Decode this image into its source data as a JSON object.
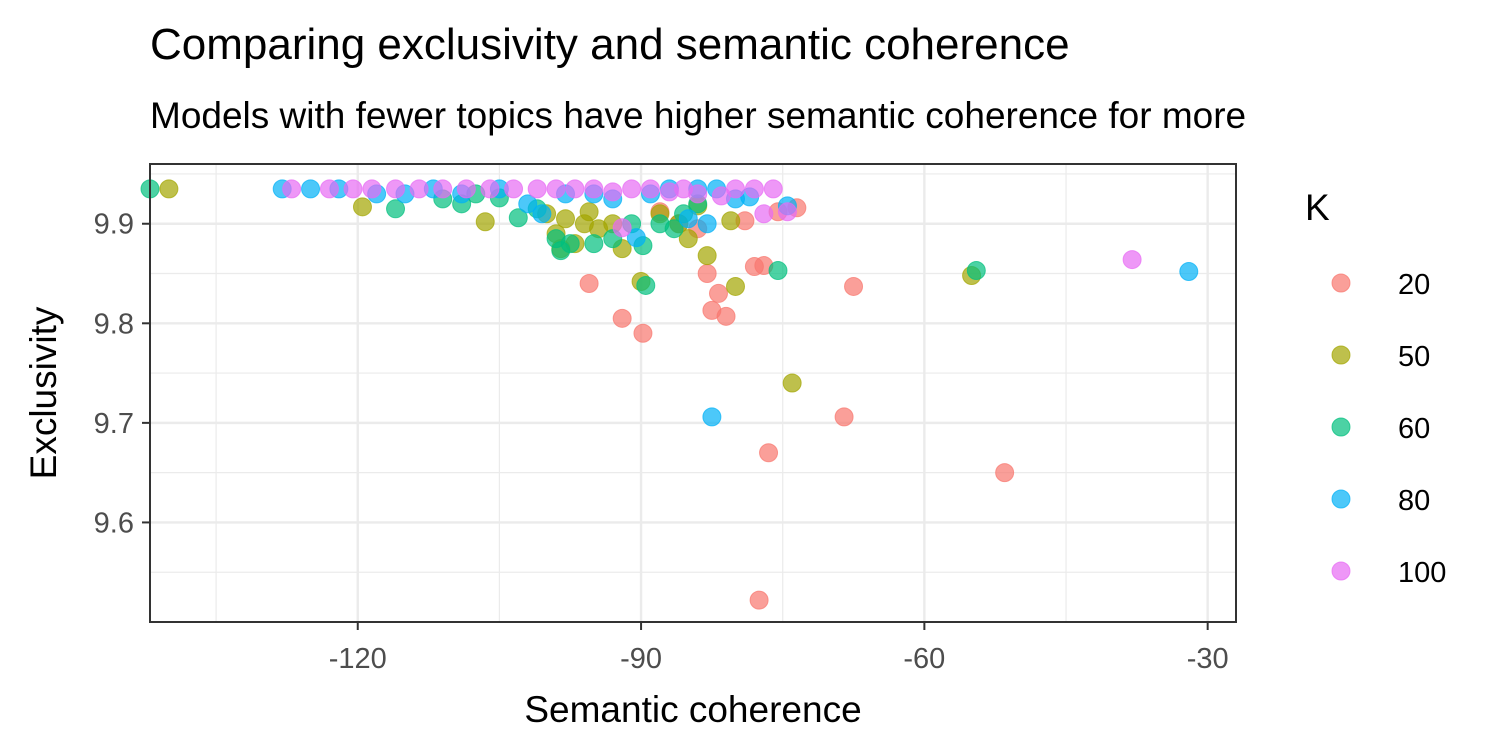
{
  "chart_data": {
    "type": "scatter",
    "title": "Comparing exclusivity and semantic coherence",
    "subtitle": "Models with fewer topics have higher semantic coherence for more",
    "xlabel": "Semantic coherence",
    "ylabel": "Exclusivity",
    "xlim": [
      -142,
      -27
    ],
    "ylim": [
      9.5,
      9.96
    ],
    "x_ticks": [
      -120,
      -90,
      -60,
      -30
    ],
    "x_tick_labels": [
      "-120",
      "-90",
      "-60",
      "-30"
    ],
    "y_ticks": [
      9.6,
      9.7,
      9.8,
      9.9
    ],
    "y_tick_labels": [
      "9.6",
      "9.7",
      "9.8",
      "9.9"
    ],
    "grid": true,
    "legend": {
      "title": "K",
      "position": "right"
    },
    "point_opacity": 0.7,
    "series": [
      {
        "name": "20",
        "color": "#F8766D",
        "points": [
          [
            -95.5,
            9.84
          ],
          [
            -92,
            9.805
          ],
          [
            -89.8,
            9.79
          ],
          [
            -83,
            9.85
          ],
          [
            -82.5,
            9.813
          ],
          [
            -81.8,
            9.83
          ],
          [
            -81,
            9.807
          ],
          [
            -78,
            9.857
          ],
          [
            -77,
            9.858
          ],
          [
            -76.5,
            9.67
          ],
          [
            -73.5,
            9.916
          ],
          [
            -75.5,
            9.912
          ],
          [
            -79,
            9.903
          ],
          [
            -67.5,
            9.837
          ],
          [
            -68.5,
            9.706
          ],
          [
            -51.5,
            9.65
          ],
          [
            -77.5,
            9.522
          ],
          [
            -86,
            9.9
          ],
          [
            -88,
            9.912
          ],
          [
            -84,
            9.895
          ]
        ]
      },
      {
        "name": "50",
        "color": "#A3A500",
        "points": [
          [
            -140,
            9.935
          ],
          [
            -119.5,
            9.917
          ],
          [
            -106.5,
            9.902
          ],
          [
            -100,
            9.91
          ],
          [
            -99,
            9.89
          ],
          [
            -98,
            9.905
          ],
          [
            -97,
            9.88
          ],
          [
            -96,
            9.9
          ],
          [
            -95.5,
            9.912
          ],
          [
            -93,
            9.9
          ],
          [
            -92,
            9.875
          ],
          [
            -90,
            9.842
          ],
          [
            -88,
            9.91
          ],
          [
            -86,
            9.9
          ],
          [
            -85,
            9.885
          ],
          [
            -84,
            9.918
          ],
          [
            -83,
            9.868
          ],
          [
            -80.5,
            9.903
          ],
          [
            -80,
            9.837
          ],
          [
            -74,
            9.74
          ],
          [
            -55,
            9.848
          ],
          [
            -98.5,
            9.875
          ],
          [
            -94.5,
            9.895
          ]
        ]
      },
      {
        "name": "60",
        "color": "#00BF7D",
        "points": [
          [
            -142,
            9.935
          ],
          [
            -116,
            9.915
          ],
          [
            -111,
            9.925
          ],
          [
            -109,
            9.92
          ],
          [
            -107.5,
            9.93
          ],
          [
            -105,
            9.926
          ],
          [
            -103,
            9.906
          ],
          [
            -101,
            9.915
          ],
          [
            -98.5,
            9.873
          ],
          [
            -97.5,
            9.88
          ],
          [
            -95,
            9.88
          ],
          [
            -93,
            9.885
          ],
          [
            -91,
            9.9
          ],
          [
            -89.8,
            9.878
          ],
          [
            -89.5,
            9.838
          ],
          [
            -88,
            9.9
          ],
          [
            -86.5,
            9.895
          ],
          [
            -85.5,
            9.91
          ],
          [
            -84,
            9.92
          ],
          [
            -75.5,
            9.853
          ],
          [
            -54.5,
            9.853
          ],
          [
            -99,
            9.885
          ]
        ]
      },
      {
        "name": "80",
        "color": "#00B0F6",
        "points": [
          [
            -128,
            9.935
          ],
          [
            -125,
            9.935
          ],
          [
            -122,
            9.935
          ],
          [
            -118,
            9.93
          ],
          [
            -115,
            9.93
          ],
          [
            -112,
            9.935
          ],
          [
            -109,
            9.93
          ],
          [
            -105,
            9.935
          ],
          [
            -102,
            9.92
          ],
          [
            -100.5,
            9.91
          ],
          [
            -98,
            9.93
          ],
          [
            -95,
            9.93
          ],
          [
            -93,
            9.925
          ],
          [
            -90.5,
            9.886
          ],
          [
            -89,
            9.93
          ],
          [
            -87,
            9.935
          ],
          [
            -85,
            9.905
          ],
          [
            -84,
            9.935
          ],
          [
            -83,
            9.9
          ],
          [
            -82,
            9.935
          ],
          [
            -80,
            9.925
          ],
          [
            -78.5,
            9.927
          ],
          [
            -82.5,
            9.706
          ],
          [
            -74.5,
            9.918
          ],
          [
            -32,
            9.852
          ]
        ]
      },
      {
        "name": "100",
        "color": "#E76BF3",
        "points": [
          [
            -127,
            9.935
          ],
          [
            -123,
            9.935
          ],
          [
            -120.5,
            9.935
          ],
          [
            -118.5,
            9.935
          ],
          [
            -116,
            9.935
          ],
          [
            -113.5,
            9.935
          ],
          [
            -111,
            9.935
          ],
          [
            -108.5,
            9.935
          ],
          [
            -106,
            9.935
          ],
          [
            -103.5,
            9.935
          ],
          [
            -101,
            9.935
          ],
          [
            -99,
            9.935
          ],
          [
            -97,
            9.935
          ],
          [
            -95,
            9.935
          ],
          [
            -93,
            9.932
          ],
          [
            -91,
            9.935
          ],
          [
            -89,
            9.935
          ],
          [
            -87,
            9.932
          ],
          [
            -85.5,
            9.935
          ],
          [
            -84,
            9.93
          ],
          [
            -81.5,
            9.928
          ],
          [
            -80,
            9.935
          ],
          [
            -78,
            9.935
          ],
          [
            -76,
            9.935
          ],
          [
            -77,
            9.91
          ],
          [
            -74.5,
            9.912
          ],
          [
            -92,
            9.896
          ],
          [
            -38,
            9.864
          ]
        ]
      }
    ]
  }
}
